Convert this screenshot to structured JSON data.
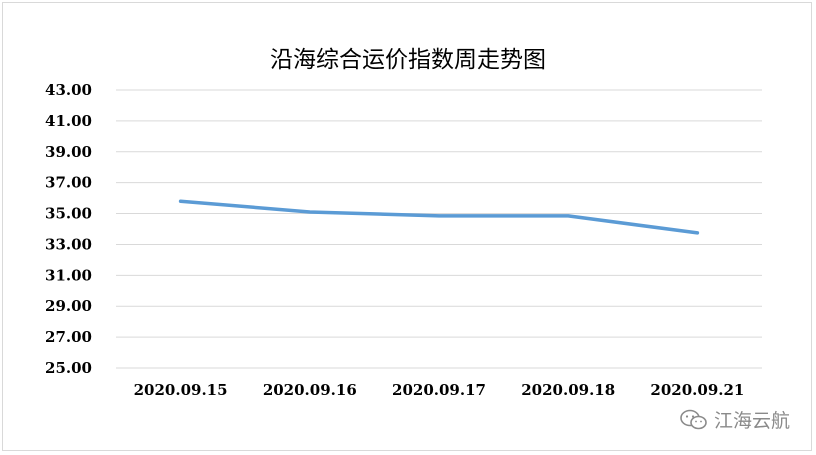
{
  "chart_data": {
    "type": "line",
    "title": "沿海综合运价指数周走势图",
    "categories": [
      "2020.09.15",
      "2020.09.16",
      "2020.09.17",
      "2020.09.18",
      "2020.09.21"
    ],
    "series": [
      {
        "values": [
          35.8,
          35.1,
          34.85,
          34.85,
          33.75
        ],
        "color": "#5b9bd5"
      }
    ],
    "yticks": [
      "43.00",
      "41.00",
      "39.00",
      "37.00",
      "35.00",
      "33.00",
      "31.00",
      "29.00",
      "27.00",
      "25.00"
    ],
    "ylim": [
      25,
      43
    ],
    "grid": true,
    "legend": "none"
  },
  "watermark": {
    "text": "江海云航",
    "icon": "wechat-icon"
  }
}
